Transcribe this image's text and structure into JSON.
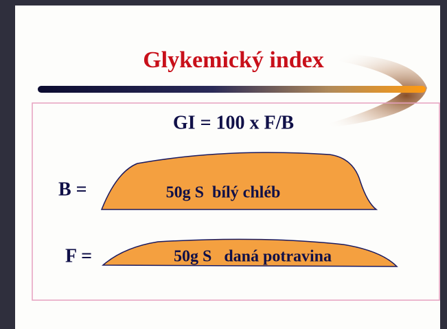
{
  "title": "Glykemický index",
  "formula": "GI = 100 x F/B",
  "rows": [
    {
      "label": "B =",
      "text": "50g S  bílý chléb"
    },
    {
      "label": "F =",
      "text": "50g S   daná potravina"
    }
  ]
}
